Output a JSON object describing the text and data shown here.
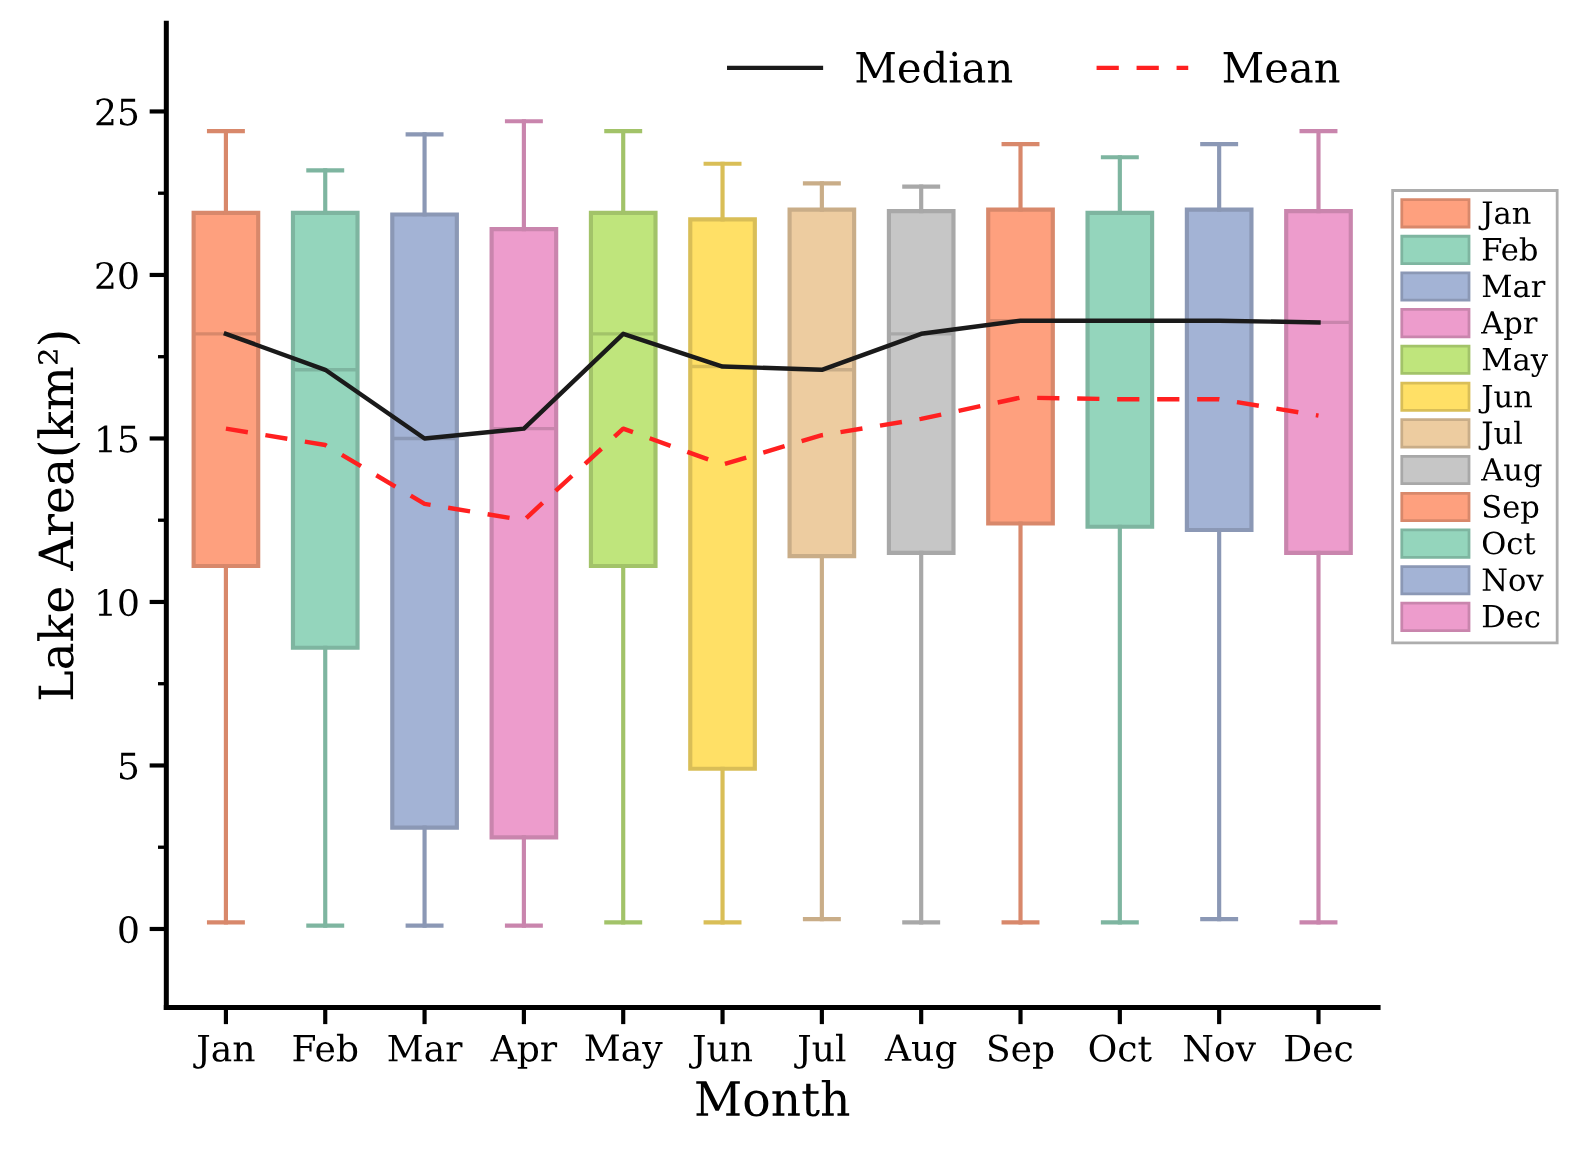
{
  "chart_data": {
    "type": "box",
    "xlabel": "Month",
    "ylabel": "Lake Area(km²)",
    "categories": [
      "Jan",
      "Feb",
      "Mar",
      "Apr",
      "May",
      "Jun",
      "Jul",
      "Aug",
      "Sep",
      "Oct",
      "Nov",
      "Dec"
    ],
    "colors": [
      "#fea07e",
      "#94d5bc",
      "#a3b3d5",
      "#ed9ccc",
      "#bfe57c",
      "#ffe066",
      "#edcca0",
      "#c6c6c6",
      "#fea07e",
      "#94d5bc",
      "#a3b3d5",
      "#ed9ccc"
    ],
    "boxes": [
      {
        "low": 0.2,
        "q1": 11.1,
        "median": 18.2,
        "q3": 21.9,
        "high": 24.4
      },
      {
        "low": 0.1,
        "q1": 8.6,
        "median": 17.1,
        "q3": 21.9,
        "high": 23.2
      },
      {
        "low": 0.1,
        "q1": 3.1,
        "median": 15.0,
        "q3": 21.85,
        "high": 24.3
      },
      {
        "low": 0.1,
        "q1": 2.8,
        "median": 15.3,
        "q3": 21.4,
        "high": 24.7
      },
      {
        "low": 0.2,
        "q1": 11.1,
        "median": 18.2,
        "q3": 21.9,
        "high": 24.4
      },
      {
        "low": 0.2,
        "q1": 4.9,
        "median": 17.2,
        "q3": 21.7,
        "high": 23.4
      },
      {
        "low": 0.3,
        "q1": 11.4,
        "median": 17.1,
        "q3": 22.0,
        "high": 22.8
      },
      {
        "low": 0.2,
        "q1": 11.5,
        "median": 18.2,
        "q3": 21.95,
        "high": 22.7
      },
      {
        "low": 0.2,
        "q1": 12.4,
        "median": 18.6,
        "q3": 22.0,
        "high": 24.0
      },
      {
        "low": 0.2,
        "q1": 12.3,
        "median": 18.6,
        "q3": 21.9,
        "high": 23.6
      },
      {
        "low": 0.3,
        "q1": 12.2,
        "median": 18.6,
        "q3": 22.0,
        "high": 24.0
      },
      {
        "low": 0.2,
        "q1": 11.5,
        "median": 18.55,
        "q3": 21.95,
        "high": 24.4
      }
    ],
    "series": [
      {
        "name": "Median",
        "type": "line",
        "color": "#1a1a1a",
        "line_style": "solid",
        "values": [
          18.2,
          17.1,
          15.0,
          15.3,
          18.2,
          17.2,
          17.1,
          18.2,
          18.6,
          18.6,
          18.6,
          18.55
        ]
      },
      {
        "name": "Mean",
        "type": "line",
        "color": "#ff2020",
        "line_style": "dashed",
        "values": [
          15.3,
          14.8,
          13.0,
          12.5,
          15.3,
          14.2,
          15.1,
          15.6,
          16.25,
          16.2,
          16.2,
          15.7
        ]
      }
    ],
    "ylim": [
      -2.4,
      27.7
    ],
    "yticks": [
      0,
      5,
      10,
      15,
      20,
      25
    ],
    "legend": "top right",
    "grid": false
  }
}
